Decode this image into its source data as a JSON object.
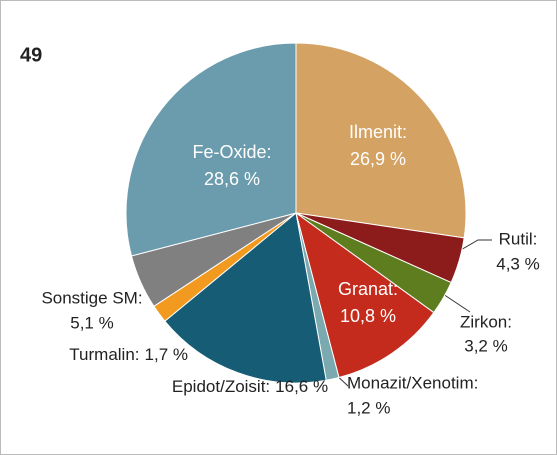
{
  "chart_data": {
    "type": "pie",
    "title": "49",
    "categories": [
      "Ilmenit:",
      "Rutil:",
      "Zirkon:",
      "Granat:",
      "Monazit/Xenotim:",
      "Epidot/Zoisit:",
      "Turmalin:",
      "Sonstige SM:",
      "Fe-Oxide:"
    ],
    "values": [
      26.9,
      4.3,
      3.2,
      10.8,
      1.2,
      16.6,
      1.7,
      5.1,
      28.6
    ],
    "value_labels": [
      "26,9 %",
      "4,3 %",
      "3,2 %",
      "10,8 %",
      "1,2 %",
      "16,6 %",
      "1,7 %",
      "5,1 %",
      "28,6 %"
    ],
    "colors": [
      "#d4a262",
      "#8c1c1c",
      "#5e7d1f",
      "#c52b1c",
      "#7aa9b0",
      "#165c74",
      "#f2991f",
      "#808080",
      "#6b9cad"
    ]
  }
}
